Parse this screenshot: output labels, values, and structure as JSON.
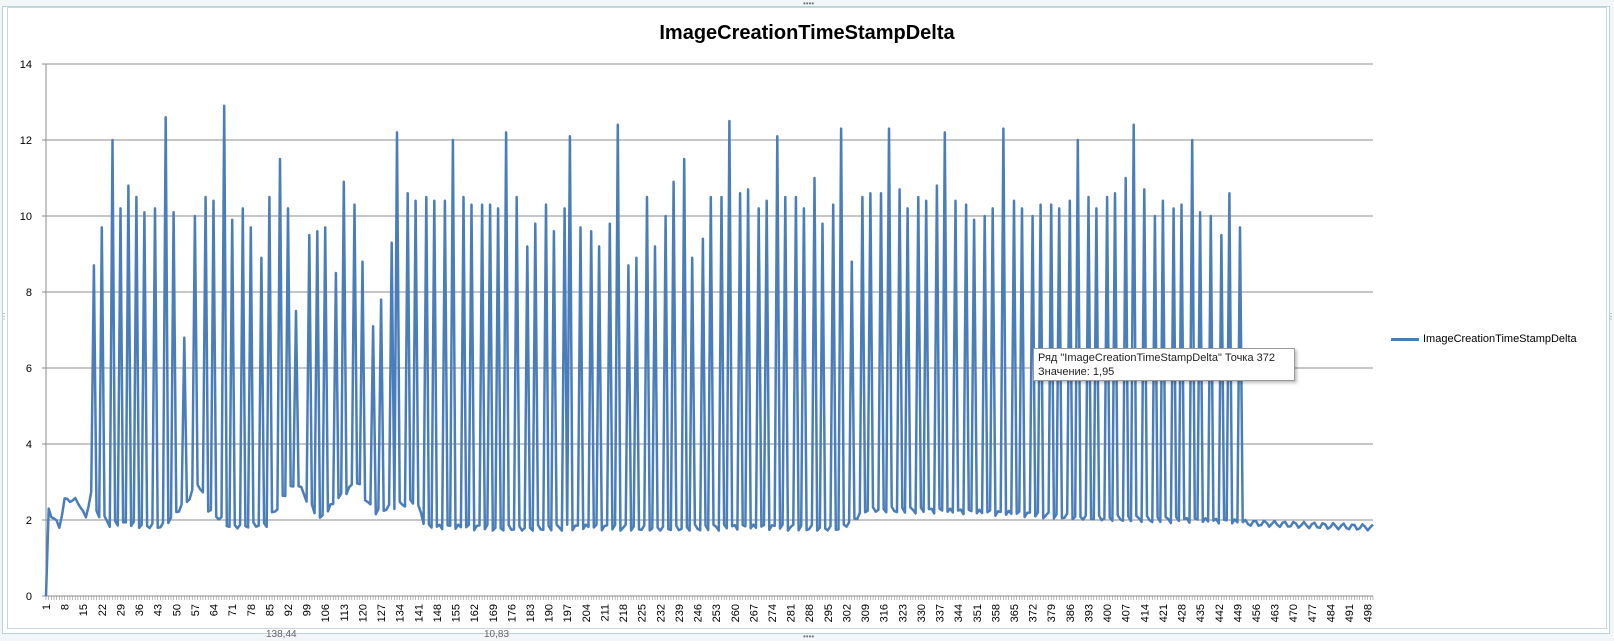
{
  "chart_data": {
    "type": "line",
    "title": "ImageCreationTimeStampDelta",
    "xlabel": "",
    "ylabel": "",
    "ylim": [
      0,
      14
    ],
    "yticks": [
      0,
      2,
      4,
      6,
      8,
      10,
      12,
      14
    ],
    "xlim": [
      1,
      500
    ],
    "xticks": [
      1,
      8,
      15,
      22,
      29,
      36,
      43,
      50,
      57,
      64,
      71,
      78,
      85,
      92,
      99,
      106,
      113,
      120,
      127,
      134,
      141,
      148,
      155,
      162,
      169,
      176,
      183,
      190,
      197,
      204,
      211,
      218,
      225,
      232,
      239,
      246,
      253,
      260,
      267,
      274,
      281,
      288,
      295,
      302,
      309,
      316,
      323,
      330,
      337,
      344,
      351,
      358,
      365,
      372,
      379,
      386,
      393,
      400,
      407,
      414,
      421,
      428,
      435,
      442,
      449,
      456,
      463,
      470,
      477,
      484,
      491,
      498
    ],
    "grid": true,
    "legend_position": "right",
    "series": [
      {
        "name": "ImageCreationTimeStampDelta",
        "color": "#4a7ebb",
        "baseline_points": [
          [
            1,
            0
          ],
          [
            2,
            2.3
          ],
          [
            4,
            2.0
          ],
          [
            6,
            1.85
          ],
          [
            8,
            2.5
          ],
          [
            10,
            2.55
          ],
          [
            12,
            2.5
          ],
          [
            14,
            2.4
          ],
          [
            16,
            2.0
          ],
          [
            18,
            2.8
          ],
          [
            20,
            2.2
          ],
          [
            21,
            2.15
          ],
          [
            25,
            1.9
          ],
          [
            45,
            1.85
          ],
          [
            55,
            2.6
          ],
          [
            58,
            3.0
          ],
          [
            62,
            2.3
          ],
          [
            70,
            1.85
          ],
          [
            84,
            1.9
          ],
          [
            92,
            2.8
          ],
          [
            96,
            2.9
          ],
          [
            104,
            2.0
          ],
          [
            110,
            2.5
          ],
          [
            118,
            3.0
          ],
          [
            124,
            2.2
          ],
          [
            128,
            2.3
          ],
          [
            140,
            2.5
          ],
          [
            144,
            1.8
          ],
          [
            300,
            1.8
          ],
          [
            310,
            2.3
          ],
          [
            500,
            1.8
          ]
        ],
        "peaks": [
          [
            19,
            8.7
          ],
          [
            22,
            9.7
          ],
          [
            26,
            12.0
          ],
          [
            29,
            10.2
          ],
          [
            32,
            10.8
          ],
          [
            35,
            10.5
          ],
          [
            38,
            10.1
          ],
          [
            42,
            10.2
          ],
          [
            46,
            12.6
          ],
          [
            49,
            10.1
          ],
          [
            53,
            6.8
          ],
          [
            57,
            10.0
          ],
          [
            61,
            10.5
          ],
          [
            64,
            10.4
          ],
          [
            68,
            12.9
          ],
          [
            71,
            9.9
          ],
          [
            75,
            10.2
          ],
          [
            78,
            9.7
          ],
          [
            82,
            8.9
          ],
          [
            85,
            10.5
          ],
          [
            89,
            11.5
          ],
          [
            92,
            10.2
          ],
          [
            95,
            7.5
          ],
          [
            100,
            9.5
          ],
          [
            103,
            9.6
          ],
          [
            106,
            9.7
          ],
          [
            110,
            8.5
          ],
          [
            113,
            10.9
          ],
          [
            117,
            10.3
          ],
          [
            120,
            8.8
          ],
          [
            124,
            7.1
          ],
          [
            127,
            7.8
          ],
          [
            131,
            9.3
          ],
          [
            133,
            12.2
          ],
          [
            137,
            10.6
          ],
          [
            140,
            10.4
          ],
          [
            144,
            10.5
          ],
          [
            147,
            10.4
          ],
          [
            151,
            10.4
          ],
          [
            154,
            12.0
          ],
          [
            158,
            10.5
          ],
          [
            161,
            10.3
          ],
          [
            165,
            10.3
          ],
          [
            168,
            10.3
          ],
          [
            171,
            10.2
          ],
          [
            174,
            12.2
          ],
          [
            178,
            10.5
          ],
          [
            182,
            9.2
          ],
          [
            185,
            9.8
          ],
          [
            189,
            10.3
          ],
          [
            192,
            9.6
          ],
          [
            196,
            10.2
          ],
          [
            198,
            12.1
          ],
          [
            202,
            9.7
          ],
          [
            206,
            9.6
          ],
          [
            209,
            9.2
          ],
          [
            213,
            9.8
          ],
          [
            216,
            12.4
          ],
          [
            220,
            8.7
          ],
          [
            223,
            8.9
          ],
          [
            227,
            10.5
          ],
          [
            230,
            9.2
          ],
          [
            234,
            10.0
          ],
          [
            237,
            10.9
          ],
          [
            241,
            11.5
          ],
          [
            244,
            8.9
          ],
          [
            248,
            9.4
          ],
          [
            251,
            10.5
          ],
          [
            255,
            10.5
          ],
          [
            258,
            12.5
          ],
          [
            262,
            10.6
          ],
          [
            265,
            10.7
          ],
          [
            269,
            10.2
          ],
          [
            272,
            10.4
          ],
          [
            276,
            12.1
          ],
          [
            279,
            10.5
          ],
          [
            283,
            10.5
          ],
          [
            286,
            10.2
          ],
          [
            290,
            11.0
          ],
          [
            293,
            9.8
          ],
          [
            297,
            10.3
          ],
          [
            300,
            12.3
          ],
          [
            304,
            8.8
          ],
          [
            308,
            10.5
          ],
          [
            311,
            10.6
          ],
          [
            315,
            10.6
          ],
          [
            318,
            12.3
          ],
          [
            322,
            10.7
          ],
          [
            325,
            10.2
          ],
          [
            329,
            10.5
          ],
          [
            332,
            10.4
          ],
          [
            336,
            10.8
          ],
          [
            339,
            12.2
          ],
          [
            343,
            10.4
          ],
          [
            347,
            10.3
          ],
          [
            350,
            9.9
          ],
          [
            354,
            10.0
          ],
          [
            357,
            10.2
          ],
          [
            361,
            12.3
          ],
          [
            365,
            10.4
          ],
          [
            368,
            10.2
          ],
          [
            372,
            10.0
          ],
          [
            375,
            10.3
          ],
          [
            379,
            10.3
          ],
          [
            382,
            10.2
          ],
          [
            386,
            10.4
          ],
          [
            389,
            12.0
          ],
          [
            393,
            10.5
          ],
          [
            396,
            10.2
          ],
          [
            400,
            10.5
          ],
          [
            403,
            10.6
          ],
          [
            407,
            11.0
          ],
          [
            410,
            12.4
          ],
          [
            414,
            10.7
          ],
          [
            418,
            10.0
          ],
          [
            421,
            10.4
          ],
          [
            425,
            10.2
          ],
          [
            428,
            10.3
          ],
          [
            432,
            12.0
          ],
          [
            435,
            10.1
          ],
          [
            439,
            10.0
          ],
          [
            443,
            9.5
          ],
          [
            446,
            10.6
          ],
          [
            450,
            9.7
          ]
        ]
      }
    ],
    "tooltip": {
      "line1": "Ряд \"ImageCreationTimeStampDelta\" Точка 372",
      "line2": "Значение: 1,95"
    }
  },
  "bottom_strip": {
    "labels": [
      "138,44",
      "10,83"
    ]
  }
}
